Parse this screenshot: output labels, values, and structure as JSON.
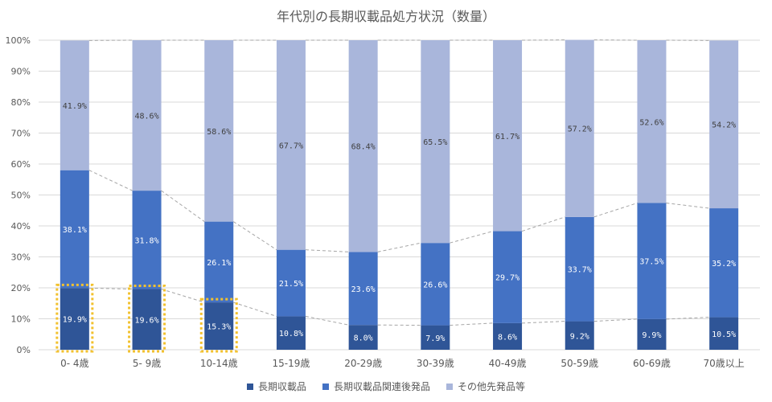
{
  "chart_data": {
    "type": "bar",
    "stacked": true,
    "title": "年代別の長期収載品処方状況（数量）",
    "categories": [
      "0- 4歳",
      "5- 9歳",
      "10-14歳",
      "15-19歳",
      "20-29歳",
      "30-39歳",
      "40-49歳",
      "50-59歳",
      "60-69歳",
      "70歳以上"
    ],
    "series": [
      {
        "name": "長期収載品",
        "color": "#2f5597",
        "values": [
          19.9,
          19.6,
          15.3,
          10.8,
          8.0,
          7.9,
          8.6,
          9.2,
          9.9,
          10.5
        ],
        "labels": [
          "19.9%",
          "19.6%",
          "15.3%",
          "10.8%",
          "8.0%",
          "7.9%",
          "8.6%",
          "9.2%",
          "9.9%",
          "10.5%"
        ]
      },
      {
        "name": "長期収載品関連後発品",
        "color": "#4472c4",
        "values": [
          38.1,
          31.8,
          26.1,
          21.5,
          23.6,
          26.6,
          29.7,
          33.7,
          37.5,
          35.2
        ],
        "labels": [
          "38.1%",
          "31.8%",
          "26.1%",
          "21.5%",
          "23.6%",
          "26.6%",
          "29.7%",
          "33.7%",
          "37.5%",
          "35.2%"
        ]
      },
      {
        "name": "その他先発品等",
        "color": "#a9b6db",
        "values": [
          41.9,
          48.6,
          58.6,
          67.7,
          68.4,
          65.5,
          61.7,
          57.2,
          52.6,
          54.2
        ],
        "labels": [
          "41.9%",
          "48.6%",
          "58.6%",
          "67.7%",
          "68.4%",
          "65.5%",
          "61.7%",
          "57.2%",
          "52.6%",
          "54.2%"
        ]
      }
    ],
    "y_ticks": [
      "0%",
      "10%",
      "20%",
      "30%",
      "40%",
      "50%",
      "60%",
      "70%",
      "80%",
      "90%",
      "100%"
    ],
    "ylim": [
      0,
      100
    ],
    "grid": true,
    "legend_position": "bottom",
    "highlighted_categories": [
      "0- 4歳",
      "5- 9歳",
      "10-14歳"
    ],
    "highlight_color": "#f2c12e",
    "connector_color": "#a6a6a6",
    "label_color_dark": "#ffffff",
    "label_color_light": "#404040"
  }
}
